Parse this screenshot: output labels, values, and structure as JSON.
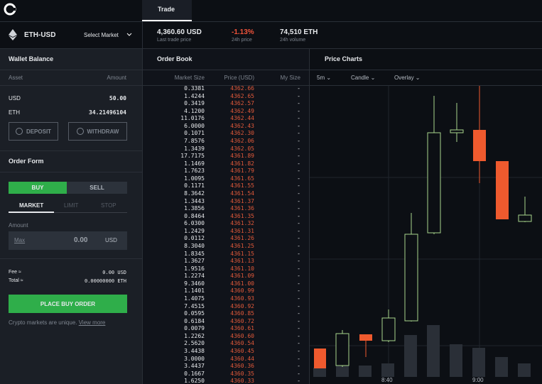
{
  "header": {
    "tabs": [
      "Trade"
    ]
  },
  "market": {
    "pair": "ETH-USD",
    "select": "Select Market",
    "stats": [
      {
        "value": "4,360.60 USD",
        "label": "Last trade price"
      },
      {
        "value": "-1.13%",
        "label": "24h price"
      },
      {
        "value": "74,510 ETH",
        "label": "24h volume"
      }
    ]
  },
  "wallet": {
    "title": "Wallet Balance",
    "headers": [
      "Asset",
      "Amount"
    ],
    "rows": [
      [
        "USD",
        "50.00"
      ],
      [
        "ETH",
        "34.21496104"
      ]
    ],
    "buttons": [
      "DEPOSIT",
      "WITHDRAW"
    ]
  },
  "order_form": {
    "title": "Order Form",
    "sides": [
      "BUY",
      "SELL"
    ],
    "types": [
      "MARKET",
      "LIMIT",
      "STOP"
    ],
    "amount_label": "Amount",
    "max": "Max",
    "amount": "0.00",
    "currency": "USD",
    "fee_label": "Fee ≈",
    "fee": "0.00 USD",
    "total_label": "Total ≈",
    "total": "0.00000000 ETH",
    "submit": "PLACE BUY ORDER",
    "note": "Crypto markets are unique.",
    "link": "View more"
  },
  "order_book": {
    "title": "Order Book",
    "headers": [
      "Market Size",
      "Price (USD)",
      "My Size"
    ],
    "rows": [
      [
        "0.3381",
        "4362.66",
        "-"
      ],
      [
        "1.4244",
        "4362.65",
        "-"
      ],
      [
        "0.3419",
        "4362.57",
        "-"
      ],
      [
        "4.1200",
        "4362.49",
        "-"
      ],
      [
        "11.0176",
        "4362.44",
        "-"
      ],
      [
        "6.0000",
        "4362.43",
        "-"
      ],
      [
        "0.1071",
        "4362.30",
        "-"
      ],
      [
        "7.8576",
        "4362.06",
        "-"
      ],
      [
        "1.3439",
        "4362.05",
        "-"
      ],
      [
        "17.7175",
        "4361.89",
        "-"
      ],
      [
        "1.1469",
        "4361.82",
        "-"
      ],
      [
        "1.7623",
        "4361.79",
        "-"
      ],
      [
        "1.0095",
        "4361.65",
        "-"
      ],
      [
        "0.1171",
        "4361.55",
        "-"
      ],
      [
        "8.3642",
        "4361.54",
        "-"
      ],
      [
        "1.3443",
        "4361.37",
        "-"
      ],
      [
        "1.3856",
        "4361.36",
        "-"
      ],
      [
        "0.8464",
        "4361.35",
        "-"
      ],
      [
        "6.0300",
        "4361.32",
        "-"
      ],
      [
        "1.2429",
        "4361.31",
        "-"
      ],
      [
        "0.0112",
        "4361.26",
        "-"
      ],
      [
        "8.3040",
        "4361.25",
        "-"
      ],
      [
        "1.8345",
        "4361.15",
        "-"
      ],
      [
        "1.3627",
        "4361.13",
        "-"
      ],
      [
        "1.9516",
        "4361.10",
        "-"
      ],
      [
        "1.2274",
        "4361.09",
        "-"
      ],
      [
        "9.3460",
        "4361.00",
        "-"
      ],
      [
        "1.1401",
        "4360.99",
        "-"
      ],
      [
        "1.4075",
        "4360.93",
        "-"
      ],
      [
        "7.4515",
        "4360.92",
        "-"
      ],
      [
        "0.0595",
        "4360.85",
        "-"
      ],
      [
        "0.6184",
        "4360.72",
        "-"
      ],
      [
        "0.0079",
        "4360.61",
        "-"
      ],
      [
        "1.2262",
        "4360.60",
        "-"
      ],
      [
        "2.5620",
        "4360.54",
        "-"
      ],
      [
        "3.4438",
        "4360.45",
        "-"
      ],
      [
        "3.0000",
        "4360.44",
        "-"
      ],
      [
        "3.4437",
        "4360.36",
        "-"
      ],
      [
        "0.1667",
        "4360.35",
        "-"
      ],
      [
        "1.6250",
        "4360.33",
        "-"
      ]
    ]
  },
  "price_chart": {
    "title": "Price Charts",
    "controls": [
      "5m",
      "Candle",
      "Overlay"
    ],
    "x_labels": [
      "8:40",
      "9:00"
    ]
  }
}
